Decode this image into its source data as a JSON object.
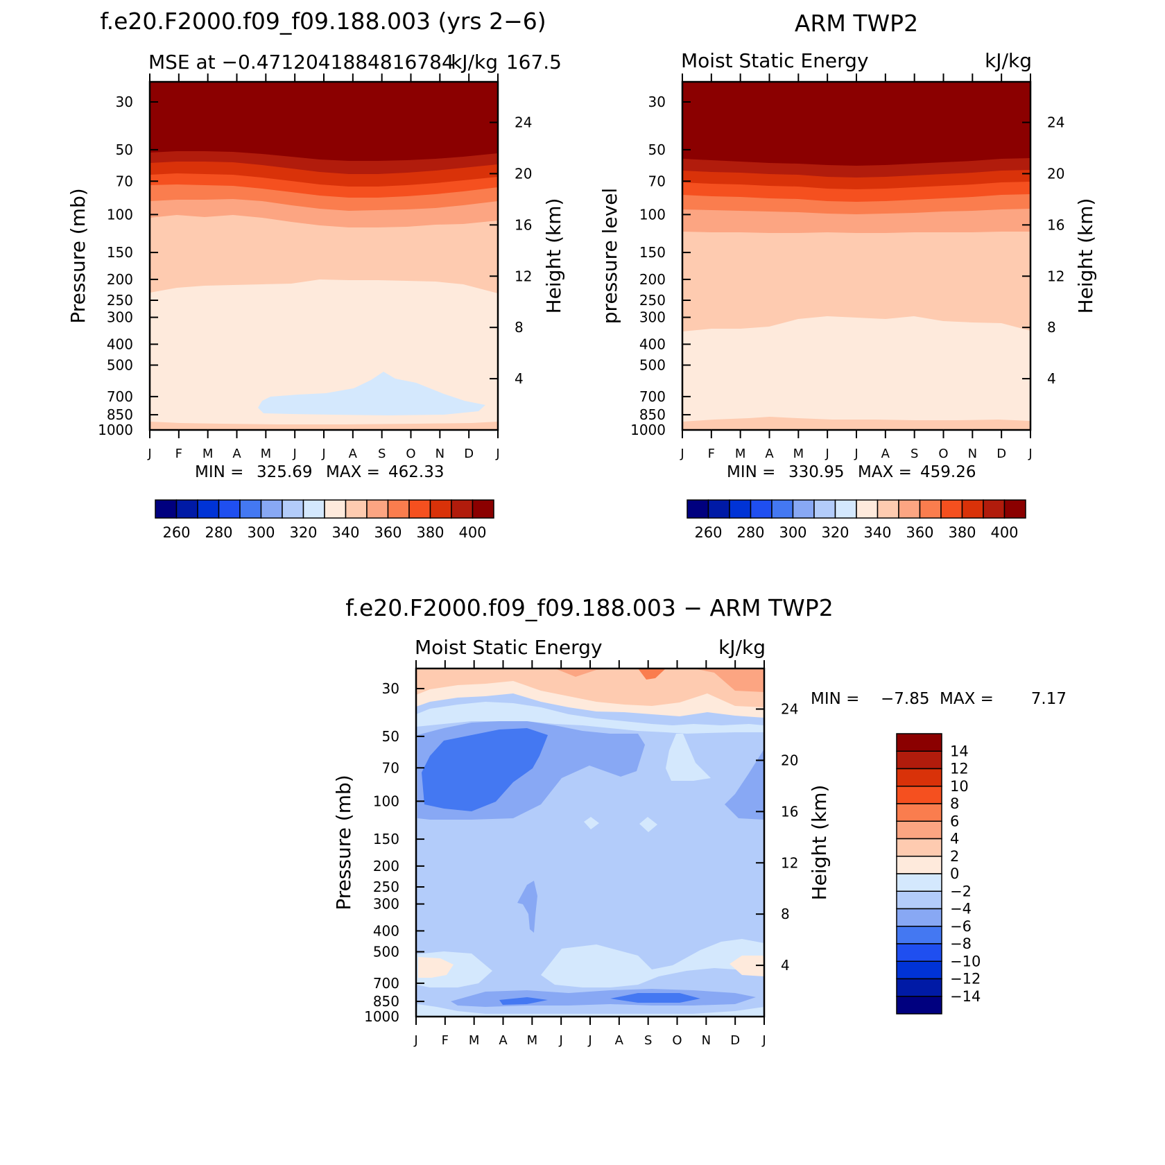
{
  "chart_data": [
    {
      "type": "heatmap",
      "title": "f.e20.F2000.f09_f09.188.003 (yrs 2−6)",
      "subtitle_left": "MSE at −0.4712041884816784",
      "subtitle_right": "kJ/kg",
      "subtitle_extra": "167.5",
      "ylabel": "Pressure (mb)",
      "ylabel_right": "Height (km)",
      "min_label": "MIN =",
      "min_value": "325.69",
      "max_label": "MAX =",
      "max_value": "462.33",
      "months": [
        "J",
        "F",
        "M",
        "A",
        "M",
        "J",
        "J",
        "A",
        "S",
        "O",
        "N",
        "D",
        "J"
      ],
      "pressure_ticks": [
        "30",
        "50",
        "70",
        "100",
        "150",
        "200",
        "250",
        "300",
        "400",
        "500",
        "700",
        "850",
        "1000"
      ],
      "height_ticks": [
        "24",
        "20",
        "16",
        "12",
        "8",
        "4"
      ],
      "colorbar_labels": [
        "260",
        "280",
        "300",
        "320",
        "340",
        "360",
        "380",
        "400"
      ],
      "colorbar_orientation": "horizontal",
      "contour_levels": [
        250,
        260,
        270,
        280,
        290,
        300,
        310,
        320,
        330,
        340,
        350,
        360,
        370,
        380,
        390,
        400
      ],
      "bands": [
        {
          "name": "band-400",
          "level": 400,
          "color": "#8b0000"
        },
        {
          "name": "band-390",
          "level": 390,
          "color": "#b11c0c"
        },
        {
          "name": "band-380",
          "level": 380,
          "color": "#d93209"
        },
        {
          "name": "band-370",
          "level": 370,
          "color": "#f5501f"
        },
        {
          "name": "band-360",
          "level": 360,
          "color": "#fa7d4e"
        },
        {
          "name": "band-350",
          "level": 350,
          "color": "#fca582"
        },
        {
          "name": "band-340",
          "level": 340,
          "color": "#fecbb0"
        },
        {
          "name": "band-330",
          "level": 330,
          "color": "#feeadc"
        },
        {
          "name": "band-320",
          "level": 320,
          "color": "#d4e8fd"
        }
      ]
    },
    {
      "type": "heatmap",
      "title": "ARM TWP2",
      "subtitle_left": "Moist Static Energy",
      "subtitle_right": "kJ/kg",
      "ylabel": "pressure level",
      "ylabel_right": "Height (km)",
      "min_label": "MIN =",
      "min_value": "330.95",
      "max_label": "MAX =",
      "max_value": "459.26",
      "months": [
        "J",
        "F",
        "M",
        "A",
        "M",
        "J",
        "J",
        "A",
        "S",
        "O",
        "N",
        "D",
        "J"
      ],
      "pressure_ticks": [
        "30",
        "50",
        "70",
        "100",
        "150",
        "200",
        "250",
        "300",
        "400",
        "500",
        "700",
        "850",
        "1000"
      ],
      "height_ticks": [
        "24",
        "20",
        "16",
        "12",
        "8",
        "4"
      ],
      "colorbar_labels": [
        "260",
        "280",
        "300",
        "320",
        "340",
        "360",
        "380",
        "400"
      ],
      "colorbar_orientation": "horizontal",
      "contour_levels": [
        250,
        260,
        270,
        280,
        290,
        300,
        310,
        320,
        330,
        340,
        350,
        360,
        370,
        380,
        390,
        400
      ],
      "bands": [
        {
          "name": "band-400",
          "level": 400,
          "color": "#8b0000"
        },
        {
          "name": "band-390",
          "level": 390,
          "color": "#b11c0c"
        },
        {
          "name": "band-380",
          "level": 380,
          "color": "#d93209"
        },
        {
          "name": "band-370",
          "level": 370,
          "color": "#f5501f"
        },
        {
          "name": "band-360",
          "level": 360,
          "color": "#fa7d4e"
        },
        {
          "name": "band-350",
          "level": 350,
          "color": "#fca582"
        },
        {
          "name": "band-340",
          "level": 340,
          "color": "#fecbb0"
        },
        {
          "name": "band-330",
          "level": 330,
          "color": "#feeadc"
        }
      ]
    },
    {
      "type": "heatmap",
      "title": "f.e20.F2000.f09_f09.188.003 − ARM TWP2",
      "subtitle_left": "Moist Static Energy",
      "subtitle_right": "kJ/kg",
      "ylabel": "Pressure (mb)",
      "ylabel_right": "Height (km)",
      "min_label": "MIN =",
      "min_value": "−7.85",
      "max_label": "MAX =",
      "max_value": "7.17",
      "months": [
        "J",
        "F",
        "M",
        "A",
        "M",
        "J",
        "J",
        "A",
        "S",
        "O",
        "N",
        "D",
        "J"
      ],
      "pressure_ticks": [
        "30",
        "50",
        "70",
        "100",
        "150",
        "200",
        "250",
        "300",
        "400",
        "500",
        "700",
        "850",
        "1000"
      ],
      "height_ticks": [
        "24",
        "20",
        "16",
        "12",
        "8",
        "4"
      ],
      "colorbar_labels": [
        "14",
        "12",
        "10",
        "8",
        "6",
        "4",
        "2",
        "0",
        "−2",
        "−4",
        "−6",
        "−8",
        "−10",
        "−12",
        "−14"
      ],
      "colorbar_orientation": "vertical",
      "contour_levels": [
        -14,
        -12,
        -10,
        -8,
        -6,
        -4,
        -2,
        0,
        2,
        4,
        6,
        8,
        10,
        12,
        14
      ]
    }
  ],
  "colormap": [
    "#00007f",
    "#001aa6",
    "#0033d6",
    "#1f4ff0",
    "#4478f2",
    "#88a8f4",
    "#b3ccfa",
    "#d4e8fd",
    "#feeadc",
    "#fecbb0",
    "#fca582",
    "#fa7d4e",
    "#f5501f",
    "#d93209",
    "#b11c0c",
    "#8b0000"
  ]
}
